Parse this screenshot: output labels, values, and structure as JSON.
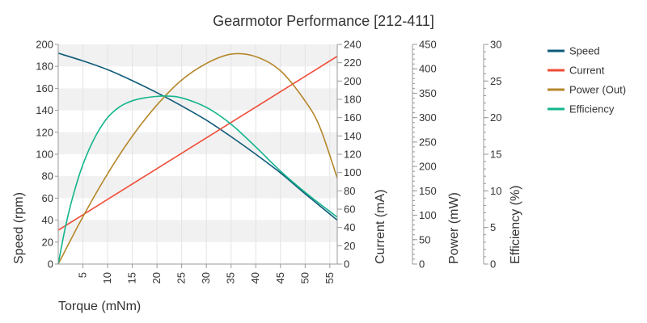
{
  "chart_data": {
    "type": "line",
    "title": "Gearmotor Performance [212-411]",
    "xlabel": "Torque (mNm)",
    "xlim": [
      0,
      56.5
    ],
    "x_ticks": [
      5,
      10,
      15,
      20,
      25,
      30,
      35,
      40,
      45,
      50,
      55
    ],
    "grid": "horizontal bands",
    "legend_position": "top-right",
    "axes": [
      {
        "id": "speed",
        "label": "Speed (rpm)",
        "min": 0,
        "max": 200,
        "step": 20
      },
      {
        "id": "current",
        "label": "Current (mA)",
        "min": 0,
        "max": 240,
        "step": 20
      },
      {
        "id": "power",
        "label": "Power (mW)",
        "min": 0,
        "max": 450,
        "step": 50
      },
      {
        "id": "efficiency",
        "label": "Efficiency (%)",
        "min": 0,
        "max": 30,
        "step": 5
      }
    ],
    "series": [
      {
        "name": "Speed",
        "axis": "speed",
        "color": "#0e5a78",
        "x": [
          0,
          5,
          10,
          15,
          20,
          25,
          30,
          35,
          40,
          45,
          50,
          56.5
        ],
        "y": [
          192,
          185,
          177,
          167,
          156,
          144,
          131,
          116,
          100,
          83,
          64,
          40
        ]
      },
      {
        "name": "Current",
        "axis": "current",
        "color": "#ef4b35",
        "x": [
          0,
          56.5
        ],
        "y": [
          37,
          227
        ]
      },
      {
        "name": "Power (Out)",
        "axis": "power",
        "color": "#b5872a",
        "x": [
          0,
          5,
          10,
          15,
          20,
          25,
          30,
          35,
          40,
          45,
          50,
          53,
          56.5
        ],
        "y": [
          0,
          97,
          185,
          262,
          326,
          377,
          411,
          430,
          425,
          396,
          334,
          280,
          176
        ]
      },
      {
        "name": "Efficiency",
        "axis": "efficiency",
        "color": "#13b58c",
        "x": [
          0,
          1.5,
          3,
          5,
          7.5,
          10,
          12.5,
          15,
          17.5,
          20,
          22,
          25,
          30,
          35,
          40,
          45,
          50,
          56.5
        ],
        "y": [
          0,
          5.2,
          9.3,
          13.6,
          17.4,
          20.0,
          21.5,
          22.3,
          22.7,
          22.9,
          22.95,
          22.7,
          21.4,
          19.1,
          16.0,
          12.7,
          9.8,
          6.4
        ]
      }
    ]
  }
}
